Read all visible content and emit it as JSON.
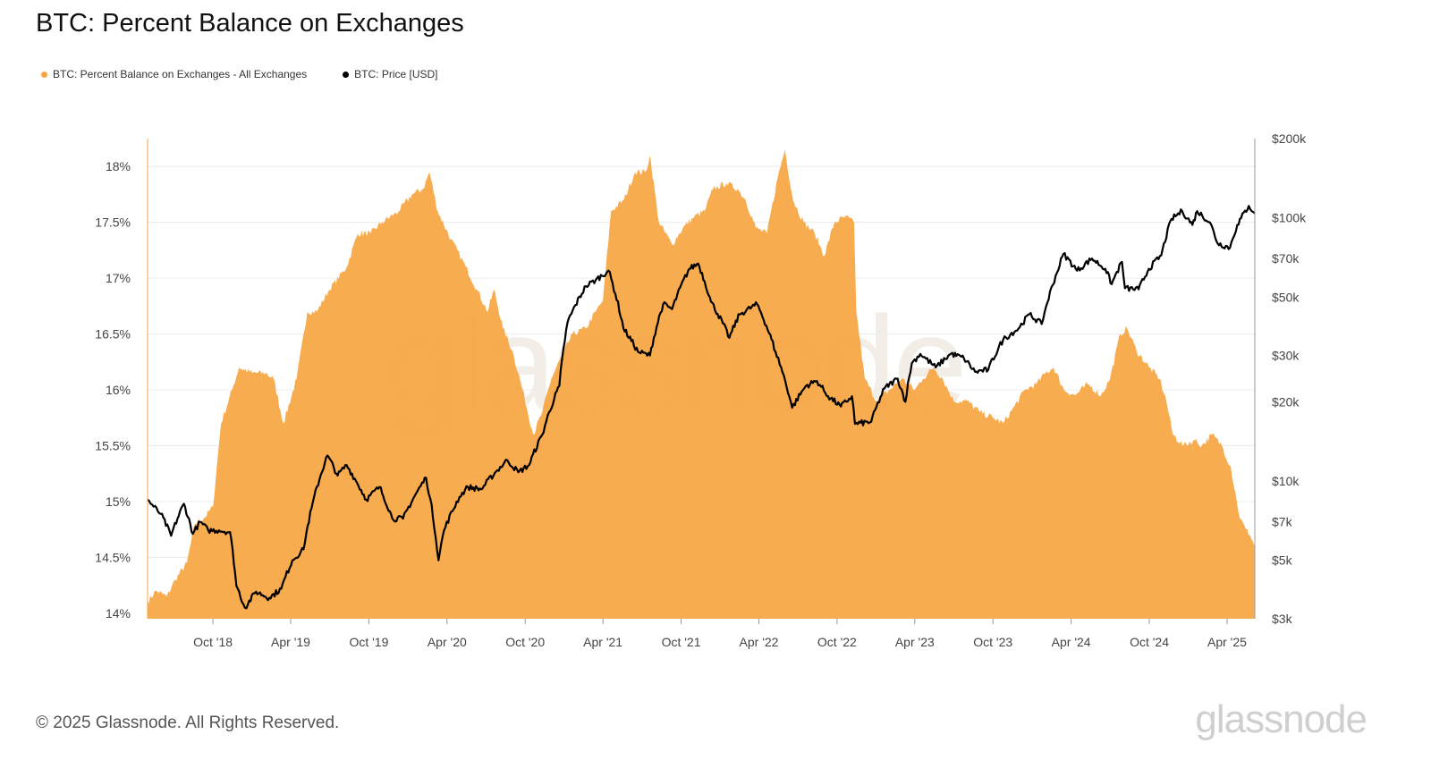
{
  "title": "BTC: Percent Balance on Exchanges",
  "legend": [
    {
      "label": "BTC: Percent Balance on Exchanges - All Exchanges",
      "color": "#F7A541"
    },
    {
      "label": "BTC: Price [USD]",
      "color": "#000000"
    }
  ],
  "footer": "© 2025 Glassnode. All Rights Reserved.",
  "brand": "glassnode",
  "watermark": "glassnode",
  "chart_data": {
    "type": "area",
    "title": "BTC: Percent Balance on Exchanges",
    "x_tick_labels": [
      "Oct '18",
      "Apr '19",
      "Oct '19",
      "Apr '20",
      "Oct '20",
      "Apr '21",
      "Oct '21",
      "Apr '22",
      "Oct '22",
      "Apr '23",
      "Oct '23",
      "Apr '24",
      "Oct '24",
      "Apr '25"
    ],
    "x_range": [
      "2018-05-01",
      "2025-06-05"
    ],
    "left_axis": {
      "ticks": [
        "14%",
        "14.5%",
        "15%",
        "15.5%",
        "16%",
        "16.5%",
        "17%",
        "17.5%",
        "18%"
      ],
      "ylim": [
        13.95,
        18.25
      ],
      "unit": "%"
    },
    "right_axis": {
      "scale": "log",
      "ticks": [
        "$3k",
        "$5k",
        "$7k",
        "$10k",
        "$20k",
        "$30k",
        "$50k",
        "$70k",
        "$100k",
        "$200k"
      ],
      "ylim": [
        3000,
        200000
      ]
    },
    "series": [
      {
        "name": "BTC: Percent Balance on Exchanges - All Exchanges",
        "axis": "left",
        "color": "#F7A541",
        "points": [
          [
            "2018-05-01",
            14.1
          ],
          [
            "2018-05-20",
            14.2
          ],
          [
            "2018-06-15",
            14.15
          ],
          [
            "2018-07-05",
            14.3
          ],
          [
            "2018-08-01",
            14.45
          ],
          [
            "2018-08-20",
            14.8
          ],
          [
            "2018-09-10",
            14.85
          ],
          [
            "2018-10-01",
            14.95
          ],
          [
            "2018-10-20",
            15.7
          ],
          [
            "2018-11-15",
            16.0
          ],
          [
            "2018-12-01",
            16.2
          ],
          [
            "2019-01-01",
            16.15
          ],
          [
            "2019-02-01",
            16.15
          ],
          [
            "2019-02-20",
            16.1
          ],
          [
            "2019-03-15",
            15.7
          ],
          [
            "2019-04-15",
            16.1
          ],
          [
            "2019-05-10",
            16.7
          ],
          [
            "2019-06-01",
            16.7
          ],
          [
            "2019-07-01",
            16.9
          ],
          [
            "2019-08-10",
            17.1
          ],
          [
            "2019-09-05",
            17.4
          ],
          [
            "2019-10-05",
            17.4
          ],
          [
            "2019-11-01",
            17.5
          ],
          [
            "2019-12-10",
            17.6
          ],
          [
            "2020-01-10",
            17.75
          ],
          [
            "2020-02-05",
            17.8
          ],
          [
            "2020-02-20",
            17.95
          ],
          [
            "2020-03-10",
            17.6
          ],
          [
            "2020-04-10",
            17.35
          ],
          [
            "2020-05-15",
            17.1
          ],
          [
            "2020-06-10",
            16.9
          ],
          [
            "2020-07-05",
            16.7
          ],
          [
            "2020-07-20",
            16.9
          ],
          [
            "2020-08-10",
            16.55
          ],
          [
            "2020-09-01",
            16.35
          ],
          [
            "2020-09-25",
            16.0
          ],
          [
            "2020-10-20",
            15.6
          ],
          [
            "2020-11-10",
            15.8
          ],
          [
            "2020-12-01",
            16.1
          ],
          [
            "2020-12-25",
            16.3
          ],
          [
            "2021-01-20",
            16.5
          ],
          [
            "2021-02-20",
            16.55
          ],
          [
            "2021-03-15",
            16.7
          ],
          [
            "2021-04-01",
            16.8
          ],
          [
            "2021-04-20",
            17.6
          ],
          [
            "2021-05-20",
            17.7
          ],
          [
            "2021-06-15",
            17.95
          ],
          [
            "2021-07-10",
            17.95
          ],
          [
            "2021-07-20",
            18.1
          ],
          [
            "2021-08-10",
            17.5
          ],
          [
            "2021-09-10",
            17.3
          ],
          [
            "2021-10-05",
            17.45
          ],
          [
            "2021-11-01",
            17.55
          ],
          [
            "2021-11-25",
            17.6
          ],
          [
            "2021-12-15",
            17.8
          ],
          [
            "2022-01-15",
            17.85
          ],
          [
            "2022-02-10",
            17.8
          ],
          [
            "2022-03-01",
            17.7
          ],
          [
            "2022-03-25",
            17.45
          ],
          [
            "2022-04-20",
            17.4
          ],
          [
            "2022-05-15",
            17.9
          ],
          [
            "2022-06-01",
            18.15
          ],
          [
            "2022-06-20",
            17.7
          ],
          [
            "2022-07-15",
            17.5
          ],
          [
            "2022-08-10",
            17.4
          ],
          [
            "2022-09-01",
            17.2
          ],
          [
            "2022-09-25",
            17.5
          ],
          [
            "2022-10-20",
            17.55
          ],
          [
            "2022-11-10",
            17.5
          ],
          [
            "2022-11-15",
            16.7
          ],
          [
            "2022-12-05",
            16.1
          ],
          [
            "2023-01-01",
            15.9
          ],
          [
            "2023-02-01",
            16.0
          ],
          [
            "2023-03-01",
            16.1
          ],
          [
            "2023-04-01",
            16.0
          ],
          [
            "2023-04-20",
            16.1
          ],
          [
            "2023-05-15",
            16.2
          ],
          [
            "2023-06-05",
            16.1
          ],
          [
            "2023-07-01",
            15.9
          ],
          [
            "2023-08-01",
            15.9
          ],
          [
            "2023-09-01",
            15.8
          ],
          [
            "2023-10-01",
            15.75
          ],
          [
            "2023-10-25",
            15.7
          ],
          [
            "2023-11-20",
            15.85
          ],
          [
            "2023-12-15",
            16.0
          ],
          [
            "2024-01-10",
            16.05
          ],
          [
            "2024-02-01",
            16.15
          ],
          [
            "2024-02-20",
            16.2
          ],
          [
            "2024-03-15",
            16.0
          ],
          [
            "2024-04-10",
            15.95
          ],
          [
            "2024-05-10",
            16.05
          ],
          [
            "2024-06-10",
            15.95
          ],
          [
            "2024-07-01",
            16.1
          ],
          [
            "2024-07-25",
            16.5
          ],
          [
            "2024-08-10",
            16.55
          ],
          [
            "2024-09-01",
            16.35
          ],
          [
            "2024-10-01",
            16.2
          ],
          [
            "2024-10-25",
            16.1
          ],
          [
            "2024-11-10",
            15.9
          ],
          [
            "2024-11-25",
            15.6
          ],
          [
            "2024-12-20",
            15.5
          ],
          [
            "2025-01-15",
            15.55
          ],
          [
            "2025-02-01",
            15.5
          ],
          [
            "2025-02-25",
            15.6
          ],
          [
            "2025-03-20",
            15.5
          ],
          [
            "2025-04-10",
            15.3
          ],
          [
            "2025-05-01",
            14.85
          ],
          [
            "2025-05-15",
            14.75
          ],
          [
            "2025-05-25",
            14.7
          ],
          [
            "2025-06-05",
            14.6
          ]
        ]
      },
      {
        "name": "BTC: Price [USD]",
        "axis": "right",
        "color": "#000000",
        "points": [
          [
            "2018-05-01",
            8500
          ],
          [
            "2018-05-15",
            8000
          ],
          [
            "2018-06-01",
            7500
          ],
          [
            "2018-06-25",
            6200
          ],
          [
            "2018-07-25",
            8200
          ],
          [
            "2018-08-15",
            6300
          ],
          [
            "2018-09-01",
            7000
          ],
          [
            "2018-09-20",
            6500
          ],
          [
            "2018-10-15",
            6500
          ],
          [
            "2018-11-10",
            6400
          ],
          [
            "2018-11-25",
            4000
          ],
          [
            "2018-12-15",
            3300
          ],
          [
            "2019-01-10",
            3800
          ],
          [
            "2019-02-10",
            3600
          ],
          [
            "2019-03-10",
            3900
          ],
          [
            "2019-04-05",
            5000
          ],
          [
            "2019-05-01",
            5500
          ],
          [
            "2019-05-20",
            7900
          ],
          [
            "2019-06-26",
            12500
          ],
          [
            "2019-07-20",
            10500
          ],
          [
            "2019-08-10",
            11500
          ],
          [
            "2019-09-01",
            10000
          ],
          [
            "2019-09-25",
            8500
          ],
          [
            "2019-10-26",
            9500
          ],
          [
            "2019-11-25",
            7200
          ],
          [
            "2019-12-20",
            7200
          ],
          [
            "2020-01-15",
            8700
          ],
          [
            "2020-02-12",
            10300
          ],
          [
            "2020-03-12",
            5000
          ],
          [
            "2020-03-25",
            6500
          ],
          [
            "2020-04-30",
            8700
          ],
          [
            "2020-05-20",
            9500
          ],
          [
            "2020-06-20",
            9300
          ],
          [
            "2020-07-28",
            11000
          ],
          [
            "2020-08-20",
            12000
          ],
          [
            "2020-09-15",
            10800
          ],
          [
            "2020-10-10",
            11500
          ],
          [
            "2020-11-10",
            15000
          ],
          [
            "2020-12-20",
            23000
          ],
          [
            "2021-01-08",
            40000
          ],
          [
            "2021-02-20",
            55000
          ],
          [
            "2021-03-15",
            58000
          ],
          [
            "2021-04-14",
            63000
          ],
          [
            "2021-05-19",
            38000
          ],
          [
            "2021-06-22",
            31000
          ],
          [
            "2021-07-20",
            30000
          ],
          [
            "2021-08-20",
            47000
          ],
          [
            "2021-09-10",
            45000
          ],
          [
            "2021-10-20",
            64000
          ],
          [
            "2021-11-10",
            67000
          ],
          [
            "2021-12-10",
            48000
          ],
          [
            "2022-01-22",
            35000
          ],
          [
            "2022-02-15",
            43000
          ],
          [
            "2022-03-28",
            47000
          ],
          [
            "2022-05-10",
            31000
          ],
          [
            "2022-06-18",
            19000
          ],
          [
            "2022-07-20",
            23000
          ],
          [
            "2022-08-15",
            24000
          ],
          [
            "2022-09-10",
            21000
          ],
          [
            "2022-10-10",
            19200
          ],
          [
            "2022-11-05",
            21000
          ],
          [
            "2022-11-12",
            16500
          ],
          [
            "2022-12-20",
            16800
          ],
          [
            "2023-01-20",
            22500
          ],
          [
            "2023-02-20",
            24500
          ],
          [
            "2023-03-10",
            20000
          ],
          [
            "2023-03-25",
            28000
          ],
          [
            "2023-04-14",
            30400
          ],
          [
            "2023-05-20",
            27000
          ],
          [
            "2023-06-25",
            30500
          ],
          [
            "2023-07-25",
            29300
          ],
          [
            "2023-08-20",
            26000
          ],
          [
            "2023-09-20",
            26500
          ],
          [
            "2023-10-25",
            34500
          ],
          [
            "2023-11-30",
            38000
          ],
          [
            "2023-12-25",
            43000
          ],
          [
            "2024-01-23",
            39500
          ],
          [
            "2024-02-28",
            62000
          ],
          [
            "2024-03-14",
            73000
          ],
          [
            "2024-04-15",
            63000
          ],
          [
            "2024-05-20",
            70000
          ],
          [
            "2024-06-20",
            64000
          ],
          [
            "2024-07-05",
            56000
          ],
          [
            "2024-07-29",
            68000
          ],
          [
            "2024-08-05",
            54000
          ],
          [
            "2024-09-06",
            53500
          ],
          [
            "2024-09-30",
            64000
          ],
          [
            "2024-10-29",
            72000
          ],
          [
            "2024-11-22",
            99000
          ],
          [
            "2024-12-17",
            106000
          ],
          [
            "2025-01-10",
            94000
          ],
          [
            "2025-01-21",
            106000
          ],
          [
            "2025-02-20",
            96000
          ],
          [
            "2025-03-10",
            80000
          ],
          [
            "2025-04-08",
            77000
          ],
          [
            "2025-04-25",
            94000
          ],
          [
            "2025-05-22",
            111000
          ],
          [
            "2025-06-05",
            104000
          ]
        ]
      }
    ]
  }
}
